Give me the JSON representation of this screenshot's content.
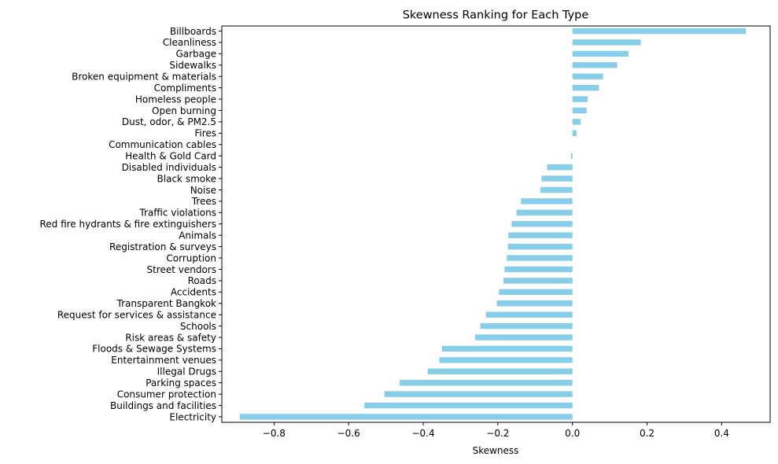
{
  "chart_data": {
    "type": "bar",
    "orientation": "horizontal",
    "title": "Skewness Ranking for Each Type",
    "xlabel": "Skewness",
    "ylabel": "",
    "xlim": [
      -0.94,
      0.53
    ],
    "xticks": [
      -0.8,
      -0.6,
      -0.4,
      -0.2,
      0.0,
      0.2,
      0.4
    ],
    "xtick_labels": [
      "−0.8",
      "−0.6",
      "−0.4",
      "−0.2",
      "0.0",
      "0.2",
      "0.4"
    ],
    "grid": false,
    "bar_color": "#87ceeb",
    "categories": [
      "Billboards",
      "Cleanliness",
      "Garbage",
      "Sidewalks",
      "Broken equipment & materials",
      "Compliments",
      "Homeless people",
      "Open burning",
      "Dust, odor, & PM2.5",
      "Fires",
      "Communication cables",
      "Health & Gold Card",
      "Disabled individuals",
      "Black smoke",
      "Noise",
      "Trees",
      "Traffic violations",
      "Red fire hydrants & fire extinguishers",
      "Animals",
      "Registration & surveys",
      "Corruption",
      "Street vendors",
      "Roads",
      "Accidents",
      "Transparent Bangkok",
      "Request for services & assistance",
      "Schools",
      "Risk areas & safety",
      "Floods & Sewage Systems",
      "Entertainment venues",
      "Illegal Drugs",
      "Parking spaces",
      "Consumer protection",
      "Buildings and facilities",
      "Electricity"
    ],
    "values": [
      0.465,
      0.183,
      0.15,
      0.12,
      0.082,
      0.071,
      0.041,
      0.038,
      0.022,
      0.011,
      0.0,
      -0.004,
      -0.068,
      -0.083,
      -0.086,
      -0.138,
      -0.15,
      -0.163,
      -0.172,
      -0.173,
      -0.176,
      -0.182,
      -0.185,
      -0.197,
      -0.203,
      -0.232,
      -0.247,
      -0.261,
      -0.35,
      -0.357,
      -0.388,
      -0.463,
      -0.504,
      -0.558,
      -0.892
    ]
  }
}
